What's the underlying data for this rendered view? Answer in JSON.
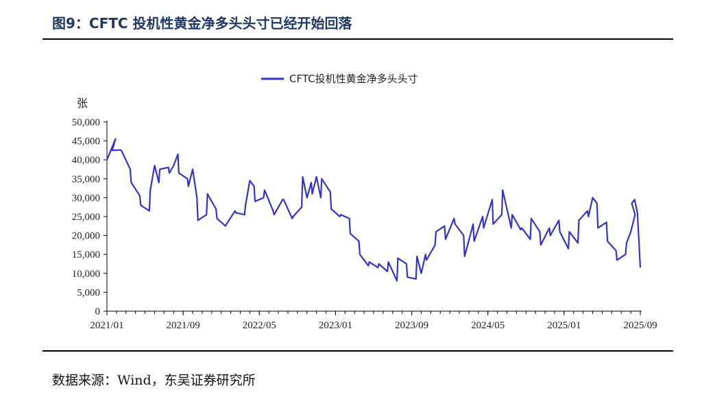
{
  "figure": {
    "title": "图9：CFTC 投机性黄金净多头头寸已经开始回落",
    "source": "数据来源：Wind，东吴证券研究所"
  },
  "colors": {
    "series": "#3333cc",
    "axis": "#000000",
    "title": "#1f3864"
  },
  "chart_data": {
    "type": "line",
    "title": "",
    "xlabel": "",
    "ylabel": "张",
    "ylim": [
      0,
      50000
    ],
    "yticks": [
      0,
      5000,
      10000,
      15000,
      20000,
      25000,
      30000,
      35000,
      40000,
      45000,
      50000
    ],
    "ytick_labels": [
      "0",
      "5,000",
      "10,000",
      "15,000",
      "20,000",
      "25,000",
      "30,000",
      "35,000",
      "40,000",
      "45,000",
      "50,000"
    ],
    "xlim": [
      "2021/01",
      "2025/09"
    ],
    "xticks": [
      "2021/01",
      "2021/09",
      "2022/05",
      "2023/01",
      "2023/09",
      "2024/05",
      "2025/01",
      "2025/09"
    ],
    "grid": false,
    "legend": "top-center",
    "series": [
      {
        "name": "CFTC投机性黄金净多头头寸",
        "points": [
          [
            "2021/01",
            40000
          ],
          [
            "2021/01",
            45500
          ],
          [
            "2021/02",
            42500
          ],
          [
            "2021/02",
            42600
          ],
          [
            "2021/03",
            42300
          ],
          [
            "2021/03",
            37500
          ],
          [
            "2021/04",
            34000
          ],
          [
            "2021/04",
            30500
          ],
          [
            "2021/05",
            28000
          ],
          [
            "2021/05",
            26500
          ],
          [
            "2021/06",
            32000
          ],
          [
            "2021/06",
            38500
          ],
          [
            "2021/06",
            34000
          ],
          [
            "2021/07",
            37500
          ],
          [
            "2021/07",
            38000
          ],
          [
            "2021/08",
            36500
          ],
          [
            "2021/08",
            38500
          ],
          [
            "2021/08",
            41500
          ],
          [
            "2021/09",
            36500
          ],
          [
            "2021/09",
            35000
          ],
          [
            "2021/10",
            33000
          ],
          [
            "2021/10",
            37500
          ],
          [
            "2021/10",
            30000
          ],
          [
            "2021/11",
            24000
          ],
          [
            "2021/11",
            25500
          ],
          [
            "2021/12",
            31000
          ],
          [
            "2021/12",
            27000
          ],
          [
            "2022/01",
            24500
          ],
          [
            "2022/01",
            22500
          ],
          [
            "2022/02",
            23000
          ],
          [
            "2022/02",
            26500
          ],
          [
            "2022/03",
            26000
          ],
          [
            "2022/03",
            25500
          ],
          [
            "2022/04",
            28000
          ],
          [
            "2022/04",
            34500
          ],
          [
            "2022/04",
            33000
          ],
          [
            "2022/05",
            29000
          ],
          [
            "2022/05",
            30000
          ],
          [
            "2022/06",
            32000
          ],
          [
            "2022/06",
            26500
          ],
          [
            "2022/07",
            25500
          ],
          [
            "2022/07",
            29500
          ],
          [
            "2022/08",
            29500
          ],
          [
            "2022/08",
            24500
          ],
          [
            "2022/09",
            25000
          ],
          [
            "2022/09",
            27500
          ],
          [
            "2022/10",
            35500
          ],
          [
            "2022/10",
            30000
          ],
          [
            "2022/10",
            34000
          ],
          [
            "2022/11",
            31000
          ],
          [
            "2022/11",
            35500
          ],
          [
            "2022/11",
            30000
          ],
          [
            "2022/12",
            35000
          ],
          [
            "2022/12",
            31500
          ],
          [
            "2023/01",
            27000
          ],
          [
            "2023/01",
            25000
          ],
          [
            "2023/02",
            25500
          ],
          [
            "2023/02",
            24500
          ],
          [
            "2023/03",
            20500
          ],
          [
            "2023/03",
            18500
          ],
          [
            "2023/04",
            15000
          ],
          [
            "2023/04",
            12000
          ],
          [
            "2023/05",
            13000
          ],
          [
            "2023/05",
            11500
          ],
          [
            "2023/06",
            12500
          ],
          [
            "2023/06",
            10500
          ],
          [
            "2023/07",
            13000
          ],
          [
            "2023/07",
            8000
          ],
          [
            "2023/08",
            14000
          ],
          [
            "2023/08",
            12500
          ],
          [
            "2023/09",
            9000
          ],
          [
            "2023/09",
            8500
          ],
          [
            "2023/10",
            14500
          ],
          [
            "2023/10",
            10000
          ],
          [
            "2023/10",
            15000
          ],
          [
            "2023/11",
            13500
          ],
          [
            "2023/11",
            17500
          ],
          [
            "2023/12",
            21000
          ],
          [
            "2023/12",
            22500
          ],
          [
            "2024/01",
            19000
          ],
          [
            "2024/01",
            24500
          ],
          [
            "2024/02",
            23000
          ],
          [
            "2024/02",
            20000
          ],
          [
            "2024/03",
            14500
          ],
          [
            "2024/03",
            23000
          ],
          [
            "2024/04",
            18500
          ],
          [
            "2024/04",
            25000
          ],
          [
            "2024/05",
            22000
          ],
          [
            "2024/05",
            29500
          ],
          [
            "2024/06",
            23000
          ],
          [
            "2024/06",
            25500
          ],
          [
            "2024/07",
            32000
          ],
          [
            "2024/07",
            22000
          ],
          [
            "2024/08",
            25500
          ],
          [
            "2024/08",
            21500
          ],
          [
            "2024/09",
            22000
          ],
          [
            "2024/09",
            19000
          ],
          [
            "2024/10",
            24500
          ],
          [
            "2024/10",
            21000
          ],
          [
            "2024/11",
            17500
          ],
          [
            "2024/11",
            22000
          ],
          [
            "2024/12",
            20000
          ],
          [
            "2024/12",
            24000
          ],
          [
            "2025/01",
            21000
          ],
          [
            "2025/01",
            16500
          ],
          [
            "2025/02",
            21000
          ],
          [
            "2025/02",
            18000
          ],
          [
            "2025/03",
            24000
          ],
          [
            "2025/03",
            26500
          ],
          [
            "2025/04",
            25000
          ],
          [
            "2025/04",
            30000
          ],
          [
            "2025/04",
            28500
          ],
          [
            "2025/05",
            22000
          ],
          [
            "2025/05",
            23500
          ],
          [
            "2025/06",
            18500
          ],
          [
            "2025/06",
            16000
          ],
          [
            "2025/07",
            13500
          ],
          [
            "2025/07",
            15000
          ],
          [
            "2025/08",
            18000
          ],
          [
            "2025/08",
            21000
          ],
          [
            "2025/08",
            25500
          ],
          [
            "2025/09",
            28500
          ],
          [
            "2025/09",
            29500
          ],
          [
            "2025/09",
            26000
          ],
          [
            "2025/09",
            11500
          ]
        ]
      }
    ]
  }
}
